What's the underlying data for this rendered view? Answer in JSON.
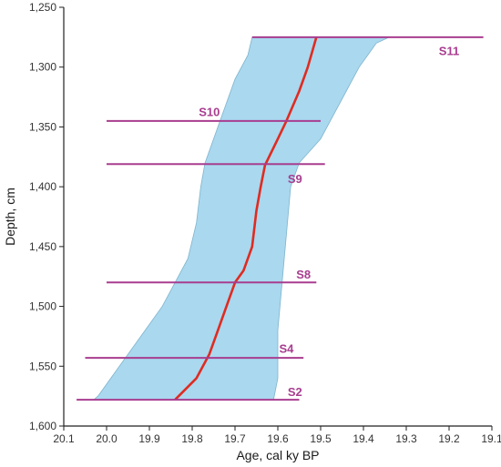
{
  "chart_data": {
    "type": "area",
    "xlabel": "Age, cal ky BP",
    "ylabel": "Depth, cm",
    "xlim": [
      20.1,
      19.1
    ],
    "ylim": [
      1250,
      1600
    ],
    "x_reversed": true,
    "y_reversed": true,
    "x_ticks": [
      20.1,
      20.0,
      19.9,
      19.8,
      19.7,
      19.6,
      19.5,
      19.4,
      19.3,
      19.2,
      19.1
    ],
    "x_tick_labels": [
      "20.1",
      "20.0",
      "19.9",
      "19.8",
      "19.7",
      "19.6",
      "19.5",
      "19.4",
      "19.3",
      "19.2",
      "19.1"
    ],
    "y_ticks": [
      1250,
      1300,
      1350,
      1400,
      1450,
      1500,
      1550,
      1600
    ],
    "y_tick_labels": [
      "1,250",
      "1,300",
      "1,350",
      "1,400",
      "1,450",
      "1,500",
      "1,550",
      "1,600"
    ],
    "uncertainty_band": {
      "color": "#a9d8ef",
      "stroke": "#7fb4cc",
      "older_edge": [
        {
          "depth": 1275,
          "age": 19.66
        },
        {
          "depth": 1290,
          "age": 19.67
        },
        {
          "depth": 1310,
          "age": 19.7
        },
        {
          "depth": 1330,
          "age": 19.72
        },
        {
          "depth": 1350,
          "age": 19.74
        },
        {
          "depth": 1370,
          "age": 19.76
        },
        {
          "depth": 1380,
          "age": 19.77
        },
        {
          "depth": 1400,
          "age": 19.78
        },
        {
          "depth": 1430,
          "age": 19.79
        },
        {
          "depth": 1460,
          "age": 19.81
        },
        {
          "depth": 1480,
          "age": 19.84
        },
        {
          "depth": 1500,
          "age": 19.87
        },
        {
          "depth": 1520,
          "age": 19.91
        },
        {
          "depth": 1540,
          "age": 19.95
        },
        {
          "depth": 1560,
          "age": 19.99
        },
        {
          "depth": 1575,
          "age": 20.02
        },
        {
          "depth": 1578,
          "age": 20.03
        }
      ],
      "younger_edge": [
        {
          "depth": 1275,
          "age": 19.34
        },
        {
          "depth": 1280,
          "age": 19.37
        },
        {
          "depth": 1290,
          "age": 19.39
        },
        {
          "depth": 1300,
          "age": 19.41
        },
        {
          "depth": 1320,
          "age": 19.44
        },
        {
          "depth": 1340,
          "age": 19.47
        },
        {
          "depth": 1360,
          "age": 19.5
        },
        {
          "depth": 1380,
          "age": 19.55
        },
        {
          "depth": 1400,
          "age": 19.57
        },
        {
          "depth": 1440,
          "age": 19.58
        },
        {
          "depth": 1480,
          "age": 19.59
        },
        {
          "depth": 1520,
          "age": 19.6
        },
        {
          "depth": 1560,
          "age": 19.6
        },
        {
          "depth": 1578,
          "age": 19.61
        }
      ]
    },
    "series": [
      {
        "color": "#e02b20",
        "points": [
          {
            "depth": 1275,
            "age": 19.51
          },
          {
            "depth": 1300,
            "age": 19.53
          },
          {
            "depth": 1320,
            "age": 19.55
          },
          {
            "depth": 1345,
            "age": 19.58
          },
          {
            "depth": 1360,
            "age": 19.6
          },
          {
            "depth": 1382,
            "age": 19.63
          },
          {
            "depth": 1400,
            "age": 19.64
          },
          {
            "depth": 1420,
            "age": 19.65
          },
          {
            "depth": 1450,
            "age": 19.66
          },
          {
            "depth": 1470,
            "age": 19.68
          },
          {
            "depth": 1480,
            "age": 19.7
          },
          {
            "depth": 1500,
            "age": 19.72
          },
          {
            "depth": 1520,
            "age": 19.74
          },
          {
            "depth": 1540,
            "age": 19.76
          },
          {
            "depth": 1560,
            "age": 19.79
          },
          {
            "depth": 1578,
            "age": 19.84
          }
        ]
      }
    ],
    "samples": [
      {
        "label": "S11",
        "depth": 1275,
        "age_from": 19.66,
        "age_to": 19.12,
        "label_age": 19.2,
        "label_depth": 1286
      },
      {
        "label": "S10",
        "depth": 1345,
        "age_from": 20.0,
        "age_to": 19.5,
        "label_age": 19.76,
        "label_depth": 1337
      },
      {
        "label": "S9",
        "depth": 1381,
        "age_from": 20.0,
        "age_to": 19.49,
        "label_age": 19.56,
        "label_depth": 1393
      },
      {
        "label": "S8",
        "depth": 1480,
        "age_from": 20.0,
        "age_to": 19.51,
        "label_age": 19.54,
        "label_depth": 1473
      },
      {
        "label": "S4",
        "depth": 1543,
        "age_from": 20.05,
        "age_to": 19.54,
        "label_age": 19.58,
        "label_depth": 1535
      },
      {
        "label": "S2",
        "depth": 1578,
        "age_from": 20.07,
        "age_to": 19.55,
        "label_age": 19.56,
        "label_depth": 1571
      }
    ],
    "sample_color": "#a83d8f",
    "grid": false
  }
}
